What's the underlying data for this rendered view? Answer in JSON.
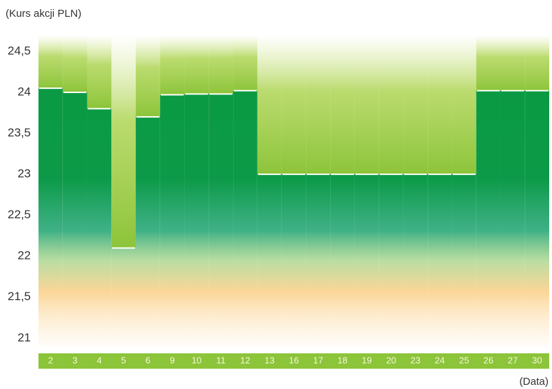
{
  "chart_data": {
    "type": "bar",
    "y_label": "(Kurs akcji PLN)",
    "x_label": "(Data)",
    "categories": [
      "2",
      "3",
      "4",
      "5",
      "6",
      "9",
      "10",
      "11",
      "12",
      "13",
      "16",
      "17",
      "18",
      "19",
      "20",
      "23",
      "24",
      "25",
      "26",
      "27",
      "30"
    ],
    "values": [
      24.05,
      24.0,
      23.8,
      22.1,
      23.7,
      23.97,
      23.98,
      23.98,
      24.02,
      23.0,
      23.0,
      23.0,
      23.0,
      23.0,
      23.0,
      23.0,
      23.0,
      23.0,
      24.02,
      24.02,
      24.02
    ],
    "color": "#0a9a40",
    "ylim": [
      20.9,
      24.7
    ],
    "yticks": [
      21,
      {
        "value": 21.5,
        "label": "21,5"
      },
      22,
      {
        "value": 22.5,
        "label": "22,5"
      },
      23,
      {
        "value": 23.5,
        "label": "23,5"
      },
      24,
      {
        "value": 24.5,
        "label": "24,5"
      }
    ],
    "grid": false
  }
}
